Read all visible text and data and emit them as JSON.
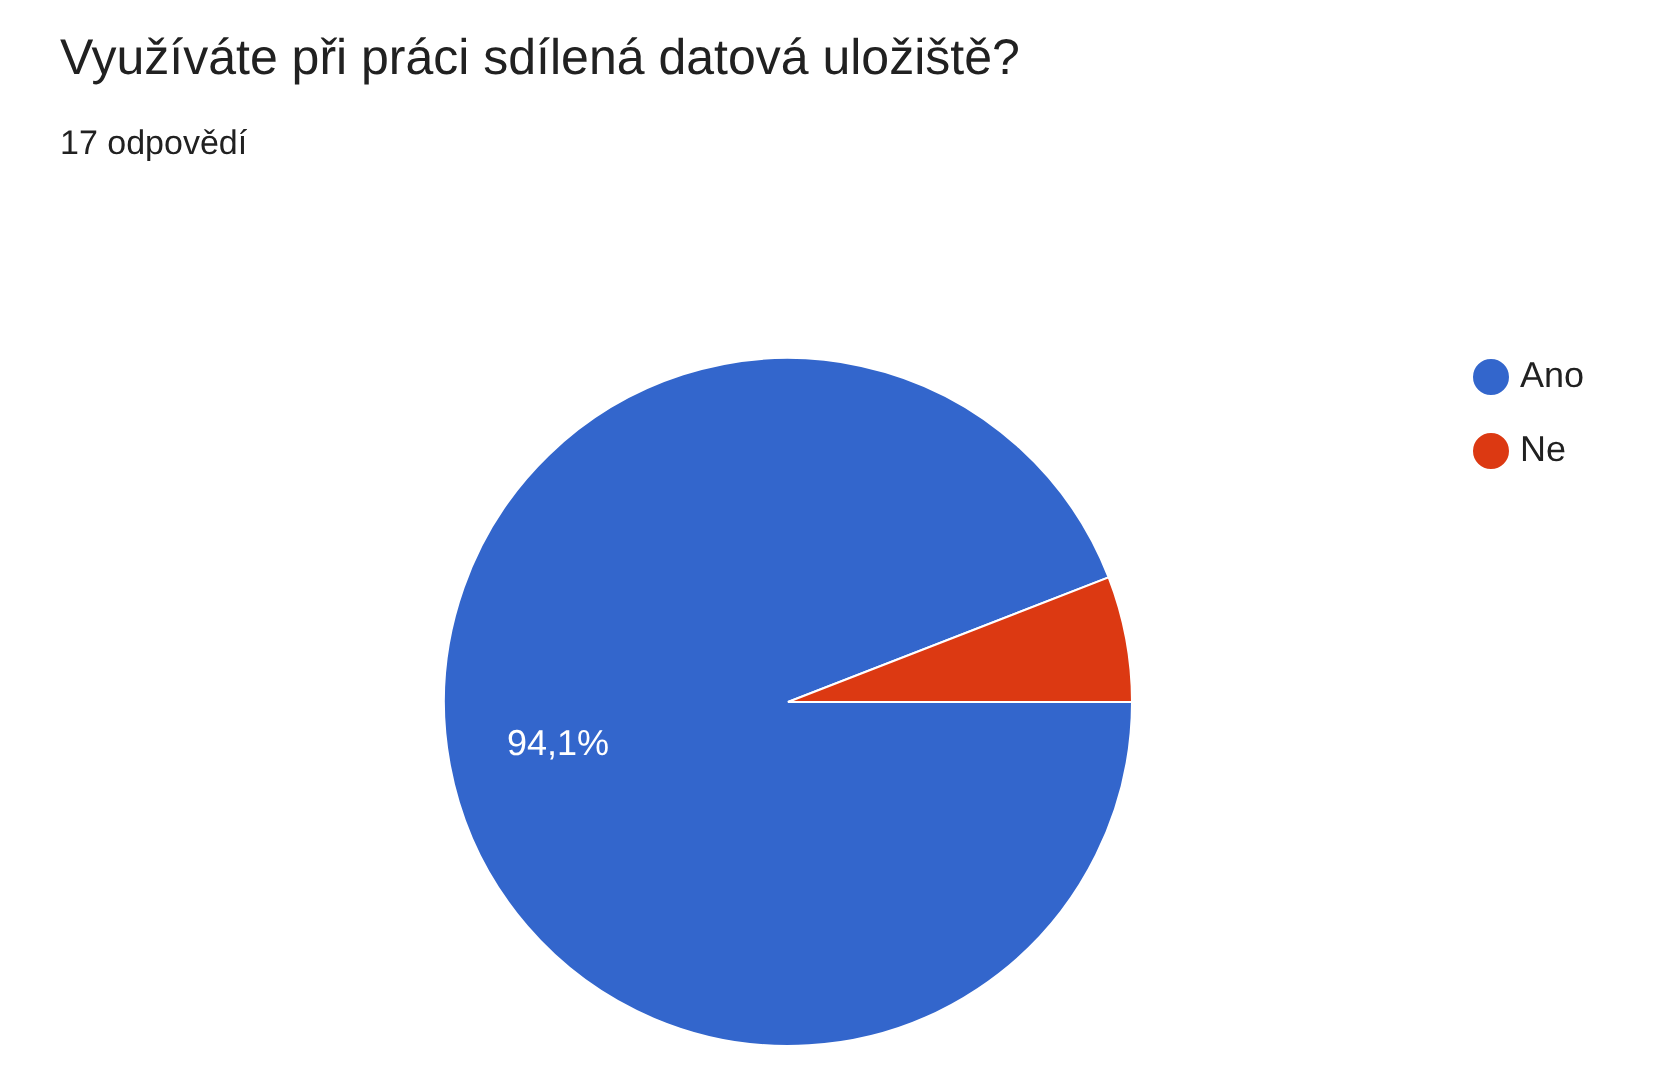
{
  "chart_data": {
    "type": "pie",
    "title": "Využíváte při práci sdílená datová uložiště?",
    "subtitle": "17 odpovědí",
    "categories": [
      "Ano",
      "Ne"
    ],
    "values": [
      94.1,
      5.9
    ],
    "colors": [
      "#3366cc",
      "#dc3912"
    ],
    "value_labels": [
      "94,1%",
      null
    ],
    "legend": "top right"
  }
}
